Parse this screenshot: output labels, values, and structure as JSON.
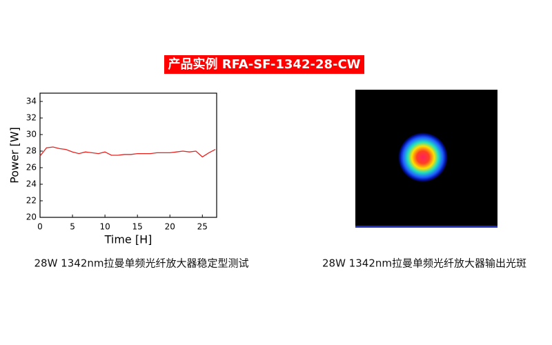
{
  "header": {
    "title": "产品实例 RFA-SF-1342-28-CW"
  },
  "chart_data": {
    "type": "line",
    "x": [
      0,
      1,
      2,
      3,
      4,
      5,
      6,
      7,
      8,
      9,
      10,
      11,
      12,
      13,
      14,
      15,
      16,
      17,
      18,
      19,
      20,
      21,
      22,
      23,
      24,
      25,
      26,
      27
    ],
    "values": [
      27.4,
      28.4,
      28.5,
      28.3,
      28.2,
      27.9,
      27.7,
      27.9,
      27.8,
      27.7,
      27.9,
      27.5,
      27.5,
      27.6,
      27.6,
      27.7,
      27.7,
      27.7,
      27.8,
      27.8,
      27.8,
      27.9,
      28.0,
      27.9,
      28.0,
      27.3,
      27.8,
      28.2
    ],
    "color": "#e8201c",
    "xlabel": "Time [H]",
    "ylabel": "Power [W]",
    "xlim": [
      0,
      27.2
    ],
    "ylim": [
      20,
      35
    ],
    "xticks": [
      0,
      5,
      10,
      15,
      20,
      25
    ],
    "yticks": [
      20,
      22,
      24,
      26,
      28,
      30,
      32,
      34
    ]
  },
  "captions": [
    "28W 1342nm拉曼单频光纤放大器稳定型测试",
    "28W 1342nm拉曼单频光纤放大器输出光斑"
  ]
}
